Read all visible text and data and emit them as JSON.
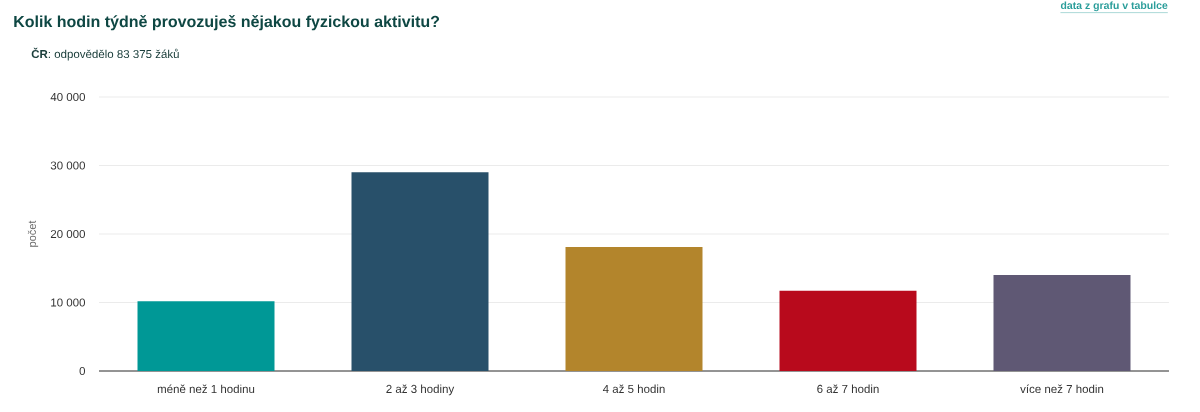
{
  "chart_data": {
    "type": "bar",
    "title": "Kolik hodin týdně provozuješ nějakou fyzickou aktivitu?",
    "subtitle": "**ČR**: odpovědělo 83 375 žáků",
    "ylabel": "počet",
    "categories": [
      "méně než 1 hodinu",
      "2 až 3 hodiny",
      "4 až 5 hodin",
      "6 až 7 hodin",
      "více než 7 hodin"
    ],
    "values": [
      10200,
      29000,
      18100,
      11700,
      14000
    ],
    "colors": [
      "#009896",
      "#28506a",
      "#b3852c",
      "#b80a1c",
      "#5f5874"
    ],
    "ylim": [
      0,
      40000
    ],
    "yticks": [
      0,
      {
        "value": 10000,
        "label": "10 000"
      },
      {
        "value": 20000,
        "label": "20 000"
      },
      {
        "value": 30000,
        "label": "30 000"
      },
      {
        "value": 40000,
        "label": "40 000"
      }
    ],
    "grid": "y",
    "annotations": [
      "data z grafu v tabulce"
    ]
  }
}
